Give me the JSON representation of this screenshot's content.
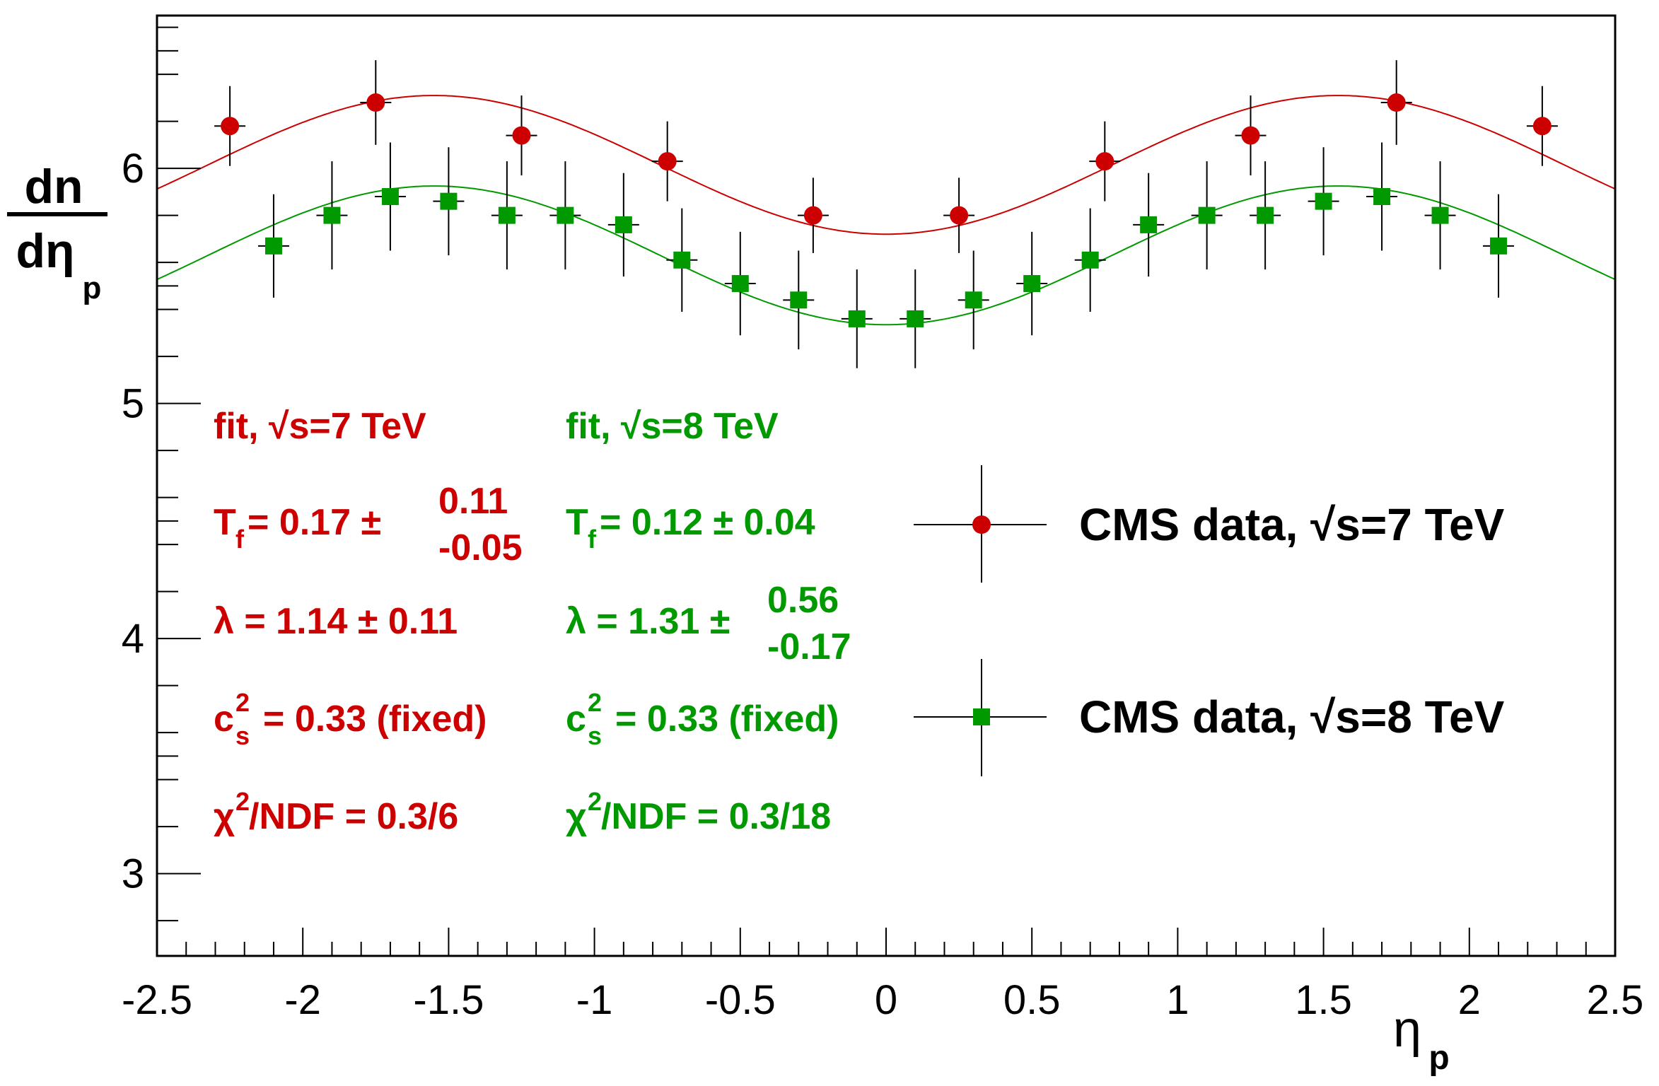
{
  "chart_data": {
    "type": "scatter",
    "title": "",
    "xlabel": "η",
    "xlabel_sub": "p",
    "ylabel_num": "dn",
    "ylabel_den": "dη",
    "ylabel_den_sub": "p",
    "xlim": [
      -2.5,
      2.5
    ],
    "ylim": [
      2.65,
      6.65
    ],
    "x_ticks": [
      -2.5,
      -2,
      -1.5,
      -1,
      -0.5,
      0,
      0.5,
      1,
      1.5,
      2,
      2.5
    ],
    "x_tick_labels": [
      "-2.5",
      "-2",
      "-1.5",
      "-1",
      "-0.5",
      "0",
      "0.5",
      "1",
      "1.5",
      "2",
      "2.5"
    ],
    "y_ticks": [
      3,
      4,
      5,
      6
    ],
    "y_tick_labels": [
      "3",
      "4",
      "5",
      "6"
    ],
    "grid": false,
    "series": [
      {
        "name": "CMS data, √s=7 TeV",
        "marker": "circle",
        "color": "#cc0000",
        "x": [
          -2.25,
          -1.75,
          -1.25,
          -0.75,
          -0.25,
          0.25,
          0.75,
          1.25,
          1.75,
          2.25
        ],
        "y": [
          6.18,
          6.28,
          6.14,
          6.03,
          5.8,
          5.8,
          6.03,
          6.14,
          6.28,
          6.18
        ],
        "err": [
          0.17,
          0.18,
          0.17,
          0.17,
          0.16,
          0.16,
          0.17,
          0.17,
          0.18,
          0.17
        ]
      },
      {
        "name": "CMS data, √s=8 TeV",
        "marker": "square",
        "color": "#009900",
        "x": [
          -2.1,
          -1.9,
          -1.7,
          -1.5,
          -1.3,
          -1.1,
          -0.9,
          -0.7,
          -0.5,
          -0.3,
          -0.1,
          0.1,
          0.3,
          0.5,
          0.7,
          0.9,
          1.1,
          1.3,
          1.5,
          1.7,
          1.9,
          2.1
        ],
        "y": [
          5.67,
          5.8,
          5.88,
          5.86,
          5.8,
          5.8,
          5.76,
          5.61,
          5.51,
          5.44,
          5.36,
          5.36,
          5.44,
          5.51,
          5.61,
          5.76,
          5.8,
          5.8,
          5.86,
          5.88,
          5.8,
          5.67
        ],
        "err": [
          0.22,
          0.23,
          0.23,
          0.23,
          0.23,
          0.23,
          0.22,
          0.22,
          0.22,
          0.21,
          0.21,
          0.21,
          0.21,
          0.22,
          0.22,
          0.22,
          0.23,
          0.23,
          0.23,
          0.23,
          0.23,
          0.22
        ]
      }
    ],
    "fits": [
      {
        "name": "fit, √s=7 TeV",
        "color": "#cc0000",
        "mean": 6.015,
        "amplitude": 0.295,
        "period": 3.1
      },
      {
        "name": "fit, √s=8 TeV",
        "color": "#009900",
        "mean": 5.63,
        "amplitude": 0.295,
        "period": 3.1
      }
    ],
    "annotations": {
      "fit7": {
        "color": "#cc0000",
        "label": "fit, √s=7 TeV",
        "tf_main": "T",
        "tf_sub": "f",
        "tf_value": " = 0.17 ±",
        "tf_err_up": "0.11",
        "tf_err_down": "-0.05",
        "lambda": "λ = 1.14 ± 0.11",
        "cs_main": "c",
        "cs_sup": "2",
        "cs_sub": "s",
        "cs_value": "= 0.33 (fixed)",
        "chi_main": "χ",
        "chi_sup": "2",
        "chi_value": "/NDF = 0.3/6"
      },
      "fit8": {
        "color": "#009900",
        "label": "fit, √s=8 TeV",
        "tf_main": "T",
        "tf_sub": "f",
        "tf_value": " = 0.12 ± 0.04",
        "lambda_value": "λ = 1.31 ±",
        "lambda_err_up": "0.56",
        "lambda_err_down": "-0.17",
        "cs_main": "c",
        "cs_sup": "2",
        "cs_sub": "s",
        "cs_value": "= 0.33 (fixed)",
        "chi_main": "χ",
        "chi_sup": "2",
        "chi_value": "/NDF = 0.3/18"
      }
    },
    "legend": {
      "position": "right",
      "entries": [
        "CMS data, √s=7 TeV",
        "CMS data, √s=8 TeV"
      ]
    }
  }
}
